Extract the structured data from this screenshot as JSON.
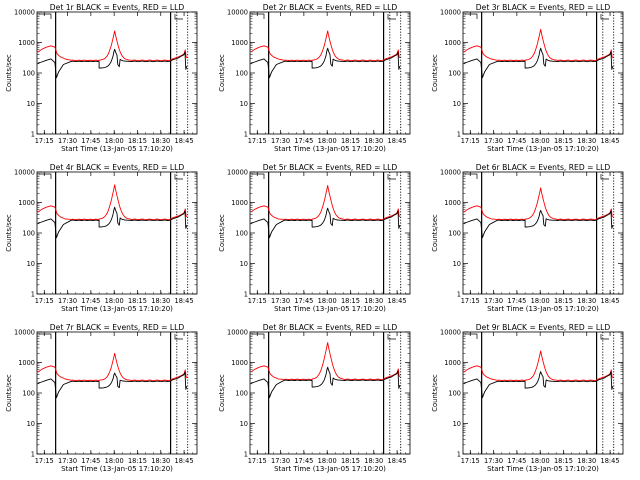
{
  "colors": {
    "events": "#000000",
    "lld": "#ff0000",
    "frame": "#000000"
  },
  "chart_data": [
    {
      "type": "line",
      "title": "Det 1r BLACK = Events, RED = LLD",
      "peak_red": 2400,
      "peak_black": 600,
      "base_red": 260,
      "base_black": 240
    },
    {
      "type": "line",
      "title": "Det 2r BLACK = Events, RED = LLD",
      "peak_red": 2400,
      "peak_black": 650,
      "base_red": 260,
      "base_black": 240
    },
    {
      "type": "line",
      "title": "Det 3r BLACK = Events, RED = LLD",
      "peak_red": 2700,
      "peak_black": 650,
      "base_red": 260,
      "base_black": 240
    },
    {
      "type": "line",
      "title": "Det 4r BLACK = Events, RED = LLD",
      "peak_red": 3800,
      "peak_black": 700,
      "base_red": 280,
      "base_black": 260
    },
    {
      "type": "line",
      "title": "Det 5r BLACK = Events, RED = LLD",
      "peak_red": 3600,
      "peak_black": 650,
      "base_red": 280,
      "base_black": 260
    },
    {
      "type": "line",
      "title": "Det 6r BLACK = Events, RED = LLD",
      "peak_red": 3000,
      "peak_black": 550,
      "base_red": 280,
      "base_black": 260
    },
    {
      "type": "line",
      "title": "Det 7r BLACK = Events, RED = LLD",
      "peak_red": 2000,
      "peak_black": 450,
      "base_red": 260,
      "base_black": 240
    },
    {
      "type": "line",
      "title": "Det 8r BLACK = Events, RED = LLD",
      "peak_red": 4500,
      "peak_black": 700,
      "base_red": 280,
      "base_black": 260
    },
    {
      "type": "line",
      "title": "Det 9r BLACK = Events, RED = LLD",
      "peak_red": 2400,
      "peak_black": 500,
      "base_red": 260,
      "base_black": 240
    }
  ],
  "shared": {
    "xlabel": "Start Time (13-Jan-05 17:10:20)",
    "ylabel": "Counts/sec",
    "xticks": [
      {
        "label": "17:15",
        "min": 4.67
      },
      {
        "label": "17:30",
        "min": 19.67
      },
      {
        "label": "17:45",
        "min": 34.67
      },
      {
        "label": "18:00",
        "min": 49.67
      },
      {
        "label": "18:15",
        "min": 64.67
      },
      {
        "label": "18:30",
        "min": 79.67
      },
      {
        "label": "18:45",
        "min": 94.67
      }
    ],
    "yticks": [
      "1",
      "10",
      "100",
      "1000",
      "10000"
    ],
    "ylim": [
      1,
      10000
    ],
    "x_range_minutes": [
      0,
      103
    ],
    "vlines_solid_min": [
      12,
      86
    ],
    "vlines_dotted_min": [
      90,
      97
    ],
    "peak_time_min": 50
  }
}
